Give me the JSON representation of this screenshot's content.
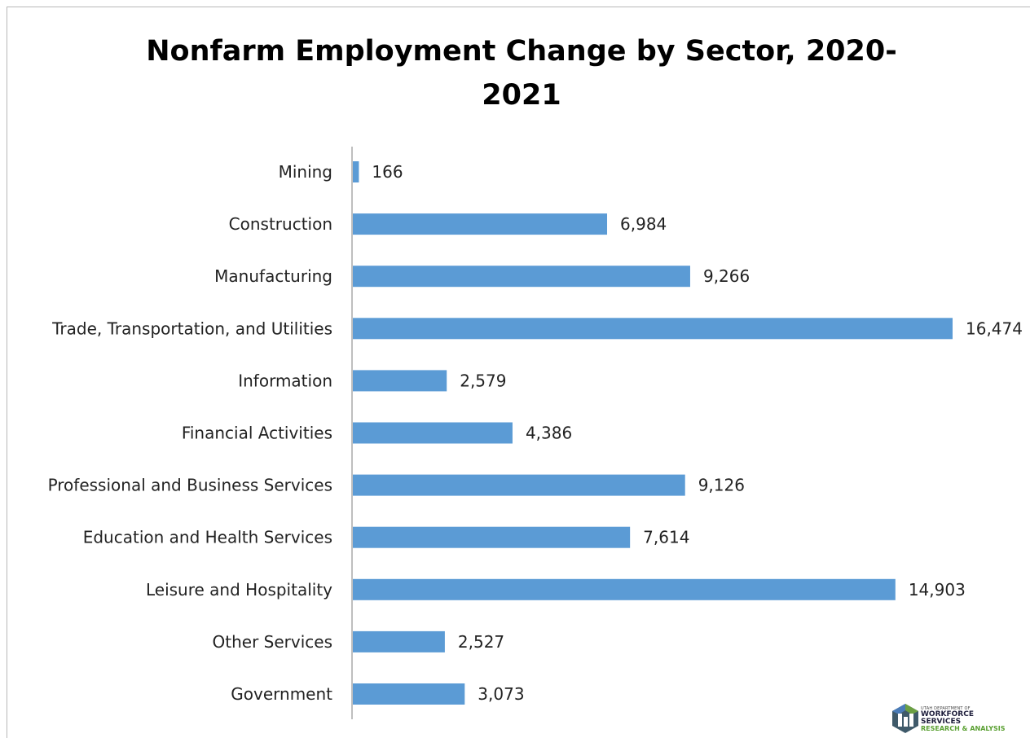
{
  "chart_data": {
    "type": "bar",
    "orientation": "horizontal",
    "title": "Nonfarm Employment Change by Sector, 2020-2021",
    "title_line1": "Nonfarm Employment Change by Sector, 2020-",
    "title_line2": "2021",
    "categories": [
      "Mining",
      "Construction",
      "Manufacturing",
      "Trade, Transportation, and Utilities",
      "Information",
      "Financial Activities",
      "Professional and Business Services",
      "Education and Health Services",
      "Leisure and Hospitality",
      "Other Services",
      "Government"
    ],
    "values": [
      166,
      6984,
      9266,
      16474,
      2579,
      4386,
      9126,
      7614,
      14903,
      2527,
      3073
    ],
    "value_labels": [
      "166",
      "6,984",
      "9,266",
      "16,474",
      "2,579",
      "4,386",
      "9,126",
      "7,614",
      "14,903",
      "2,527",
      "3,073"
    ],
    "bar_color": "#5b9bd5",
    "data_labels": true,
    "xlim": [
      0,
      16474
    ],
    "grid": false,
    "legend": "none"
  },
  "logo": {
    "line1": "UTAH DEPARTMENT OF",
    "line2": "WORKFORCE",
    "line3": "SERVICES",
    "line4": "RESEARCH & ANALYSIS"
  }
}
